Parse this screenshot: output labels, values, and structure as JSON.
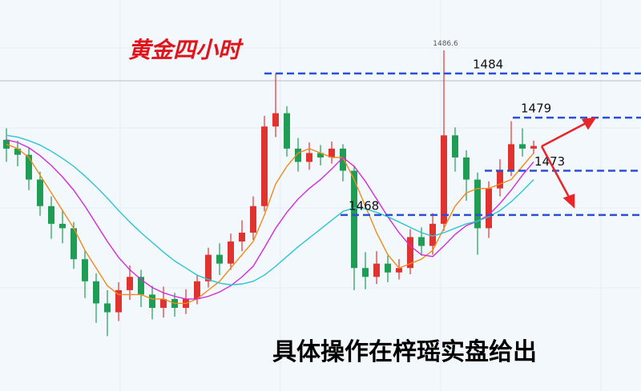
{
  "chart_data": {
    "type": "candlestick",
    "title": "黄金四小时",
    "annotation": "具体操作在梓瑶实盘给出",
    "ylim": [
      1448.1,
      1492.3
    ],
    "up_color": "#e0332f",
    "down_color": "#1f9d55",
    "open": [
      1476.5,
      1475.5,
      1474.8,
      1472.0,
      1469.0,
      1467.0,
      1466.5,
      1463.0,
      1460.5,
      1458.0,
      1457.0,
      1459.5,
      1461.0,
      1459.0,
      1457.5,
      1458.5,
      1457.5,
      1458.5,
      1460.5,
      1463.5,
      1462.5,
      1465.0,
      1466.0,
      1469.0,
      1478.0,
      1479.5,
      1475.5,
      1474.0,
      1475.0,
      1474.5,
      1475.5,
      1473.0,
      1462.0,
      1461.0,
      1462.5,
      1461.5,
      1462.0,
      1465.5,
      1464.5,
      1467.0,
      1477.0,
      1474.5,
      1472.0,
      1466.5,
      1471.0,
      1473.0,
      1476.0,
      1475.5
    ],
    "high": [
      1477.8,
      1476.4,
      1475.6,
      1472.9,
      1470.1,
      1468.6,
      1467.2,
      1464.0,
      1461.4,
      1459.5,
      1460.4,
      1462.3,
      1461.8,
      1460.0,
      1459.9,
      1459.2,
      1459.6,
      1461.2,
      1464.3,
      1464.8,
      1465.9,
      1467.4,
      1470.1,
      1479.2,
      1484.0,
      1480.3,
      1476.7,
      1476.2,
      1475.9,
      1476.3,
      1476.0,
      1473.6,
      1463.8,
      1463.9,
      1463.4,
      1463.0,
      1466.4,
      1466.6,
      1468.2,
      1486.6,
      1477.9,
      1475.3,
      1472.8,
      1471.8,
      1474.3,
      1478.6,
      1477.8,
      1476.4
    ],
    "low": [
      1474.0,
      1473.5,
      1470.8,
      1467.9,
      1465.3,
      1464.8,
      1461.9,
      1458.6,
      1455.8,
      1454.3,
      1456.0,
      1458.4,
      1457.6,
      1456.2,
      1456.4,
      1456.5,
      1456.8,
      1457.9,
      1459.8,
      1461.2,
      1461.8,
      1463.9,
      1465.2,
      1468.4,
      1476.8,
      1474.6,
      1472.9,
      1473.1,
      1473.6,
      1473.8,
      1471.8,
      1459.5,
      1459.6,
      1460.2,
      1460.4,
      1460.7,
      1461.3,
      1463.4,
      1463.5,
      1466.2,
      1472.9,
      1469.6,
      1463.5,
      1465.4,
      1470.1,
      1472.4,
      1474.6,
      1474.9
    ],
    "close": [
      1475.5,
      1474.8,
      1472.0,
      1469.0,
      1467.0,
      1466.5,
      1463.0,
      1460.5,
      1458.0,
      1457.0,
      1459.5,
      1461.0,
      1459.0,
      1457.5,
      1458.5,
      1457.5,
      1458.5,
      1460.5,
      1463.5,
      1462.5,
      1465.0,
      1466.0,
      1469.0,
      1478.0,
      1479.5,
      1475.5,
      1474.0,
      1475.0,
      1474.5,
      1475.5,
      1473.0,
      1462.0,
      1461.0,
      1462.5,
      1461.5,
      1462.0,
      1465.5,
      1464.5,
      1467.0,
      1477.0,
      1474.5,
      1472.0,
      1466.5,
      1471.0,
      1473.0,
      1476.0,
      1475.5,
      1475.8
    ],
    "series": [
      {
        "color": "#f08a1c",
        "values": [
          1476.0,
          1475.5,
          1474.5,
          1472.5,
          1470.5,
          1468.5,
          1466.5,
          1464.0,
          1462.0,
          1460.0,
          1459.0,
          1459.0,
          1459.0,
          1458.5,
          1458.5,
          1458.0,
          1458.0,
          1458.5,
          1459.5,
          1460.5,
          1462.0,
          1463.5,
          1465.0,
          1468.0,
          1471.5,
          1473.5,
          1475.0,
          1475.5,
          1475.0,
          1474.5,
          1474.5,
          1472.0,
          1469.0,
          1466.0,
          1463.5,
          1462.0,
          1462.5,
          1463.0,
          1464.0,
          1466.5,
          1469.0,
          1470.5,
          1471.0,
          1471.0,
          1471.5,
          1472.0,
          1473.5,
          1475.0
        ]
      },
      {
        "color": "#d62ad6",
        "values": [
          1476.5,
          1476.2,
          1475.6,
          1474.7,
          1473.6,
          1472.3,
          1470.8,
          1469.0,
          1467.0,
          1465.0,
          1463.2,
          1461.8,
          1460.7,
          1459.8,
          1459.2,
          1458.8,
          1458.5,
          1458.5,
          1458.8,
          1459.3,
          1460.0,
          1461.0,
          1462.2,
          1464.3,
          1466.5,
          1468.3,
          1469.8,
          1471.0,
          1472.0,
          1473.2,
          1474.5,
          1473.5,
          1471.8,
          1469.8,
          1467.8,
          1466.0,
          1464.5,
          1463.5,
          1463.3,
          1464.5,
          1465.8,
          1466.8,
          1467.3,
          1468.0,
          1469.3,
          1470.8,
          1472.5,
          1474.0
        ]
      },
      {
        "color": "#2cc4d4",
        "values": [
          1477.0,
          1476.8,
          1476.4,
          1475.9,
          1475.2,
          1474.4,
          1473.5,
          1472.4,
          1471.2,
          1469.9,
          1468.5,
          1467.2,
          1466.0,
          1464.9,
          1463.8,
          1462.8,
          1462.0,
          1461.2,
          1460.7,
          1460.3,
          1460.1,
          1460.2,
          1460.5,
          1461.2,
          1462.2,
          1463.3,
          1464.4,
          1465.4,
          1466.4,
          1467.4,
          1468.4,
          1468.8,
          1468.7,
          1468.3,
          1467.8,
          1467.2,
          1466.6,
          1466.0,
          1465.6,
          1466.0,
          1466.5,
          1467.0,
          1467.3,
          1467.8,
          1468.5,
          1469.5,
          1470.7,
          1472.0
        ]
      }
    ],
    "levels": [
      1484,
      1479,
      1473,
      1468
    ],
    "level_color": "#2b50d8"
  }
}
